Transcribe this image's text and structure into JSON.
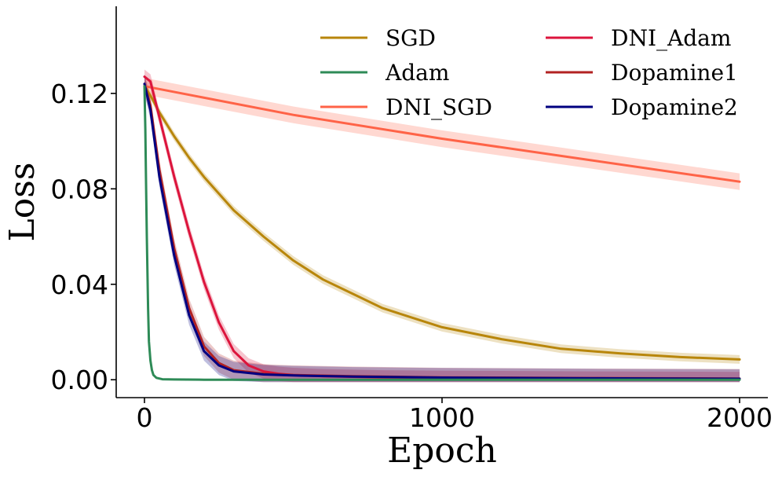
{
  "chart_data": {
    "type": "line",
    "title": "",
    "xlabel": "Epoch",
    "ylabel": "Loss",
    "xlim": [
      -95,
      2095
    ],
    "ylim": [
      -0.0075,
      0.1565
    ],
    "xticks": [
      0,
      1000,
      2000
    ],
    "xtick_labels": [
      "0",
      "1000",
      "2000"
    ],
    "yticks": [
      0.0,
      0.04,
      0.08,
      0.12
    ],
    "ytick_labels": [
      "0.00",
      "0.04",
      "0.08",
      "0.12"
    ],
    "grid": false,
    "legend": {
      "placement": "top-right",
      "columns": 2
    },
    "series": [
      {
        "name": "SGD",
        "color": "#b8860b",
        "x": [
          0,
          25,
          50,
          100,
          150,
          200,
          300,
          400,
          500,
          600,
          700,
          800,
          900,
          1000,
          1200,
          1400,
          1600,
          1800,
          2000
        ],
        "y": [
          0.123,
          0.118,
          0.112,
          0.102,
          0.093,
          0.085,
          0.071,
          0.06,
          0.05,
          0.042,
          0.036,
          0.03,
          0.026,
          0.022,
          0.017,
          0.013,
          0.011,
          0.0095,
          0.0085
        ],
        "band": 0.0018
      },
      {
        "name": "Adam",
        "color": "#2e8b57",
        "x": [
          0,
          3,
          5,
          8,
          10,
          12,
          15,
          20,
          25,
          30,
          40,
          60,
          100,
          200,
          500,
          1000,
          2000
        ],
        "y": [
          0.123,
          0.105,
          0.085,
          0.06,
          0.045,
          0.03,
          0.016,
          0.008,
          0.004,
          0.002,
          0.0008,
          0.0002,
          0.0001,
          0.0,
          0.0,
          0.0,
          0.0
        ],
        "band": 0.0
      },
      {
        "name": "DNI_SGD",
        "color": "#ff6347",
        "x": [
          0,
          500,
          1000,
          1500,
          2000
        ],
        "y": [
          0.123,
          0.111,
          0.101,
          0.092,
          0.083
        ],
        "band": 0.0035
      },
      {
        "name": "DNI_Adam",
        "color": "#dc143c",
        "x": [
          0,
          20,
          50,
          100,
          150,
          200,
          250,
          300,
          350,
          400,
          450,
          500,
          600,
          800,
          1000,
          1500,
          2000
        ],
        "y": [
          0.127,
          0.125,
          0.11,
          0.085,
          0.062,
          0.041,
          0.024,
          0.012,
          0.006,
          0.0035,
          0.0025,
          0.002,
          0.0015,
          0.001,
          0.0008,
          0.0005,
          0.0003
        ],
        "band": 0.003
      },
      {
        "name": "Dopamine1",
        "color": "#b22222",
        "x": [
          0,
          20,
          50,
          100,
          150,
          200,
          250,
          300,
          400,
          500,
          700,
          1000,
          1500,
          2000
        ],
        "y": [
          0.124,
          0.115,
          0.088,
          0.055,
          0.03,
          0.014,
          0.007,
          0.004,
          0.0025,
          0.002,
          0.0015,
          0.001,
          0.0007,
          0.0005
        ],
        "band": 0.004
      },
      {
        "name": "Dopamine2",
        "color": "#000080",
        "x": [
          0,
          20,
          50,
          100,
          150,
          200,
          250,
          300,
          400,
          500,
          700,
          1000,
          1500,
          2000
        ],
        "y": [
          0.124,
          0.113,
          0.085,
          0.052,
          0.027,
          0.012,
          0.006,
          0.0035,
          0.0022,
          0.0018,
          0.0013,
          0.0009,
          0.0006,
          0.0004
        ],
        "band": 0.004
      }
    ]
  }
}
